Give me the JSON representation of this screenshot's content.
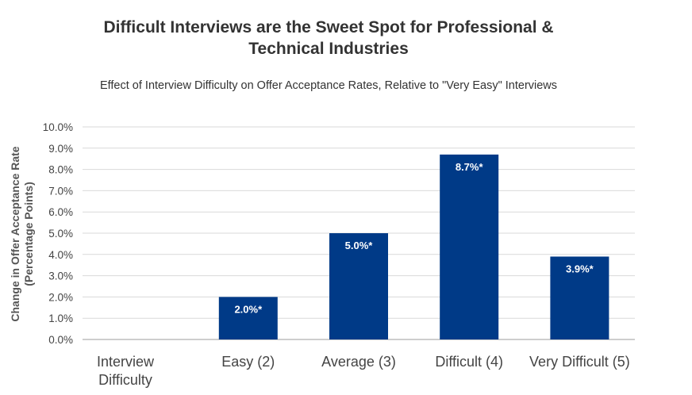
{
  "chart_data": {
    "type": "bar",
    "title_lines": [
      "Difficult Interviews are the Sweet Spot for Professional &",
      "Technical Industries"
    ],
    "subtitle": "Effect of Interview Difficulty on Offer Acceptance Rates, Relative to \"Very Easy\" Interviews",
    "ylabel_lines": [
      "Change in Offer Acceptance Rate",
      "(Percentage Points)"
    ],
    "x_axis_title_lines": [
      "Interview",
      "Difficulty"
    ],
    "categories": [
      "Easy (2)",
      "Average (3)",
      "Difficult (4)",
      "Very Difficult (5)"
    ],
    "values": [
      2.0,
      5.0,
      8.7,
      3.9
    ],
    "data_labels": [
      "2.0%*",
      "5.0%*",
      "8.7%*",
      "3.9%*"
    ],
    "ylim": [
      0,
      10
    ],
    "yticks": [
      0,
      1,
      2,
      3,
      4,
      5,
      6,
      7,
      8,
      9,
      10
    ],
    "ytick_labels": [
      "0.0%",
      "1.0%",
      "2.0%",
      "3.0%",
      "4.0%",
      "5.0%",
      "6.0%",
      "7.0%",
      "8.0%",
      "9.0%",
      "10.0%"
    ],
    "grid": true,
    "bar_color": "#003a87",
    "grid_color": "#d9d9d9"
  }
}
